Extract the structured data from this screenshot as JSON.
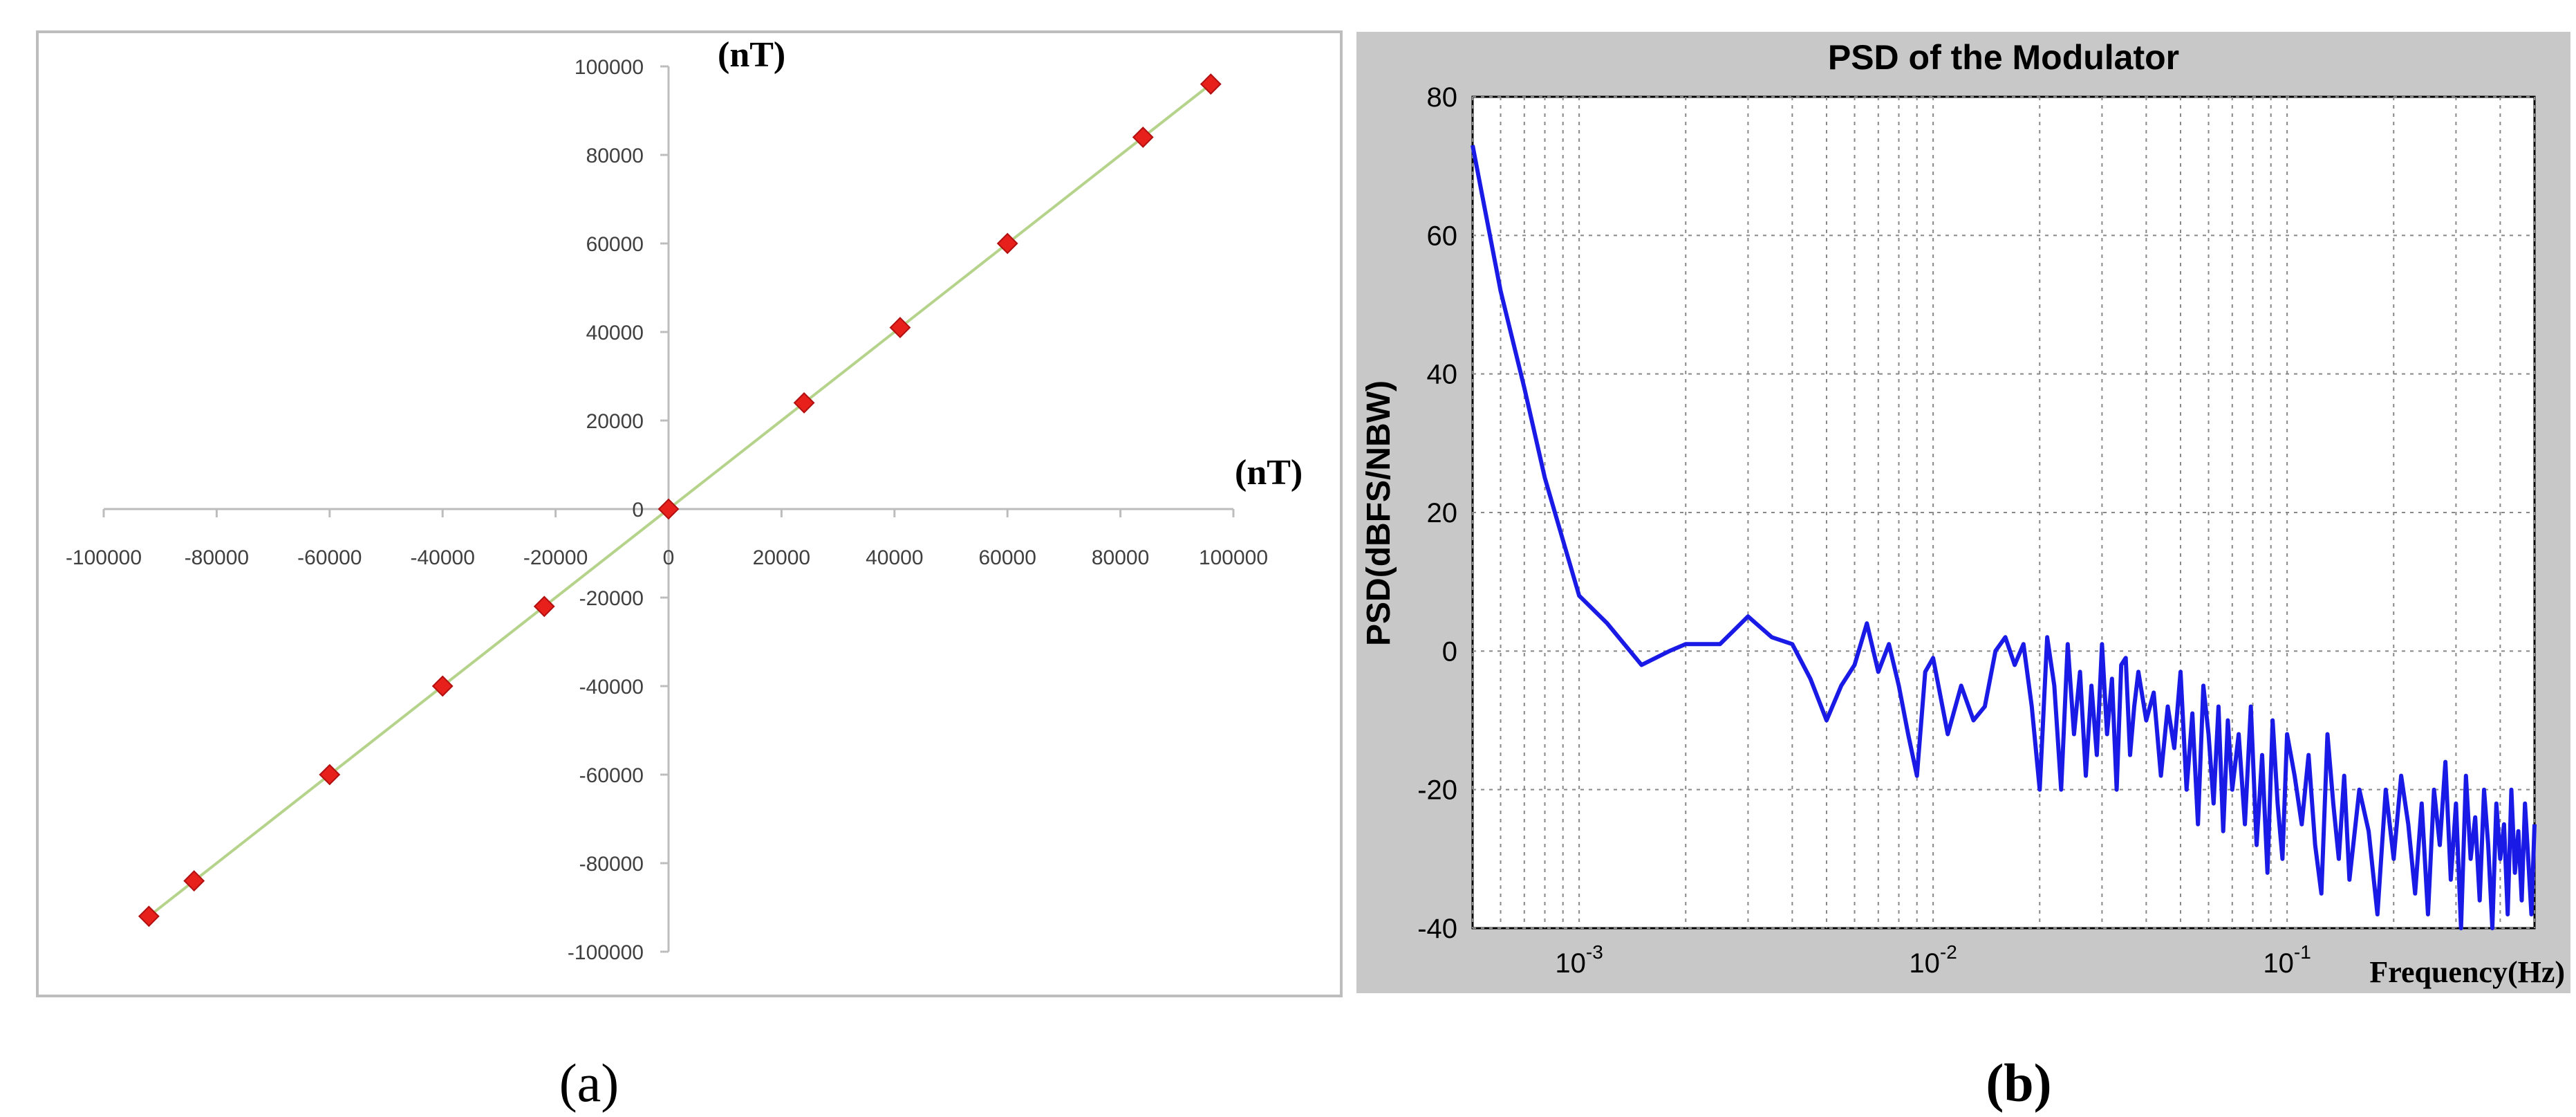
{
  "chart_data": [
    {
      "type": "scatter",
      "x_unit": "(nT)",
      "y_unit": "(nT)",
      "xlim": [
        -100000,
        100000
      ],
      "ylim": [
        -100000,
        100000
      ],
      "x_ticks": [
        -100000,
        -80000,
        -60000,
        -40000,
        -20000,
        0,
        20000,
        40000,
        60000,
        80000,
        100000
      ],
      "y_ticks": [
        -100000,
        -80000,
        -60000,
        -40000,
        -20000,
        0,
        20000,
        40000,
        60000,
        80000,
        100000
      ],
      "x_tick_labels": [
        "-100000",
        "-80000",
        "-60000",
        "-40000",
        "-20000",
        "0",
        "20000",
        "40000",
        "60000",
        "80000",
        "100000"
      ],
      "y_tick_labels": [
        "-100000",
        "-80000",
        "-60000",
        "-40000",
        "-20000",
        "0",
        "20000",
        "40000",
        "60000",
        "80000",
        "100000"
      ],
      "x": [
        -92000,
        -84000,
        -60000,
        -40000,
        -22000,
        0,
        24000,
        41000,
        60000,
        84000,
        96000
      ],
      "y": [
        -92000,
        -84000,
        -60000,
        -40000,
        -22000,
        0,
        24000,
        41000,
        60000,
        84000,
        96000
      ],
      "fit_line": {
        "x": [
          -92000,
          96000
        ],
        "y": [
          -92000,
          96000
        ],
        "color": "#b5d38a"
      },
      "marker_color": "#e8201c",
      "grid": false,
      "caption": "(a)"
    },
    {
      "type": "line",
      "title": "PSD of the Modulator",
      "xlabel": "Frequency(Hz)",
      "ylabel": "PSD(dBFS/NBW)",
      "xscale": "log",
      "xlim": [
        0.0005,
        0.5
      ],
      "ylim": [
        -40,
        80
      ],
      "x_tick_labels": [
        {
          "base": "10",
          "exp": "-3",
          "value": 0.001
        },
        {
          "base": "10",
          "exp": "-2",
          "value": 0.01
        },
        {
          "base": "10",
          "exp": "-1",
          "value": 0.1
        }
      ],
      "y_ticks": [
        -40,
        -20,
        0,
        20,
        40,
        60,
        80
      ],
      "y_tick_labels": [
        "-40",
        "-20",
        "0",
        "20",
        "40",
        "60",
        "80"
      ],
      "grid": true,
      "line_color": "#1a1ae6",
      "panel_color": "#c8c8c8",
      "x": [
        0.0005,
        0.00055,
        0.0006,
        0.0007,
        0.0008,
        0.0009,
        0.001,
        0.0012,
        0.0015,
        0.0018,
        0.002,
        0.0025,
        0.003,
        0.0035,
        0.004,
        0.0045,
        0.005,
        0.0055,
        0.006,
        0.0065,
        0.007,
        0.0075,
        0.008,
        0.0085,
        0.009,
        0.0095,
        0.01,
        0.011,
        0.012,
        0.013,
        0.014,
        0.015,
        0.016,
        0.017,
        0.018,
        0.019,
        0.02,
        0.021,
        0.022,
        0.023,
        0.024,
        0.025,
        0.026,
        0.027,
        0.028,
        0.029,
        0.03,
        0.031,
        0.032,
        0.033,
        0.034,
        0.035,
        0.036,
        0.037,
        0.038,
        0.04,
        0.042,
        0.044,
        0.046,
        0.048,
        0.05,
        0.052,
        0.054,
        0.056,
        0.058,
        0.06,
        0.062,
        0.064,
        0.066,
        0.068,
        0.07,
        0.073,
        0.076,
        0.079,
        0.082,
        0.085,
        0.088,
        0.091,
        0.094,
        0.097,
        0.1,
        0.105,
        0.11,
        0.115,
        0.12,
        0.125,
        0.13,
        0.135,
        0.14,
        0.145,
        0.15,
        0.16,
        0.17,
        0.18,
        0.19,
        0.2,
        0.21,
        0.22,
        0.23,
        0.24,
        0.25,
        0.26,
        0.27,
        0.28,
        0.29,
        0.3,
        0.31,
        0.32,
        0.33,
        0.34,
        0.35,
        0.36,
        0.37,
        0.38,
        0.39,
        0.4,
        0.41,
        0.42,
        0.43,
        0.44,
        0.45,
        0.46,
        0.47,
        0.48,
        0.49,
        0.5
      ],
      "y": [
        73,
        62,
        52,
        38,
        25,
        16,
        8,
        4,
        -2,
        0,
        1,
        1,
        5,
        2,
        1,
        -4,
        -10,
        -5,
        -2,
        4,
        -3,
        1,
        -5,
        -12,
        -18,
        -3,
        -1,
        -12,
        -5,
        -10,
        -8,
        0,
        2,
        -2,
        1,
        -8,
        -20,
        2,
        -5,
        -20,
        1,
        -12,
        -3,
        -18,
        -5,
        -15,
        1,
        -12,
        -4,
        -20,
        -2,
        -1,
        -15,
        -8,
        -3,
        -10,
        -6,
        -18,
        -8,
        -14,
        -3,
        -20,
        -9,
        -25,
        -5,
        -12,
        -22,
        -8,
        -26,
        -10,
        -20,
        -12,
        -25,
        -8,
        -28,
        -15,
        -32,
        -10,
        -22,
        -30,
        -12,
        -18,
        -25,
        -15,
        -28,
        -35,
        -12,
        -22,
        -30,
        -18,
        -33,
        -20,
        -26,
        -38,
        -20,
        -30,
        -18,
        -25,
        -35,
        -22,
        -38,
        -20,
        -28,
        -16,
        -33,
        -22,
        -40,
        -18,
        -30,
        -24,
        -36,
        -20,
        -28,
        -40,
        -22,
        -30,
        -25,
        -38,
        -20,
        -32,
        -26,
        -36,
        -22,
        -30,
        -38,
        -25
      ]
    }
  ],
  "captions": {
    "a": "(a)",
    "b": "(b)"
  }
}
